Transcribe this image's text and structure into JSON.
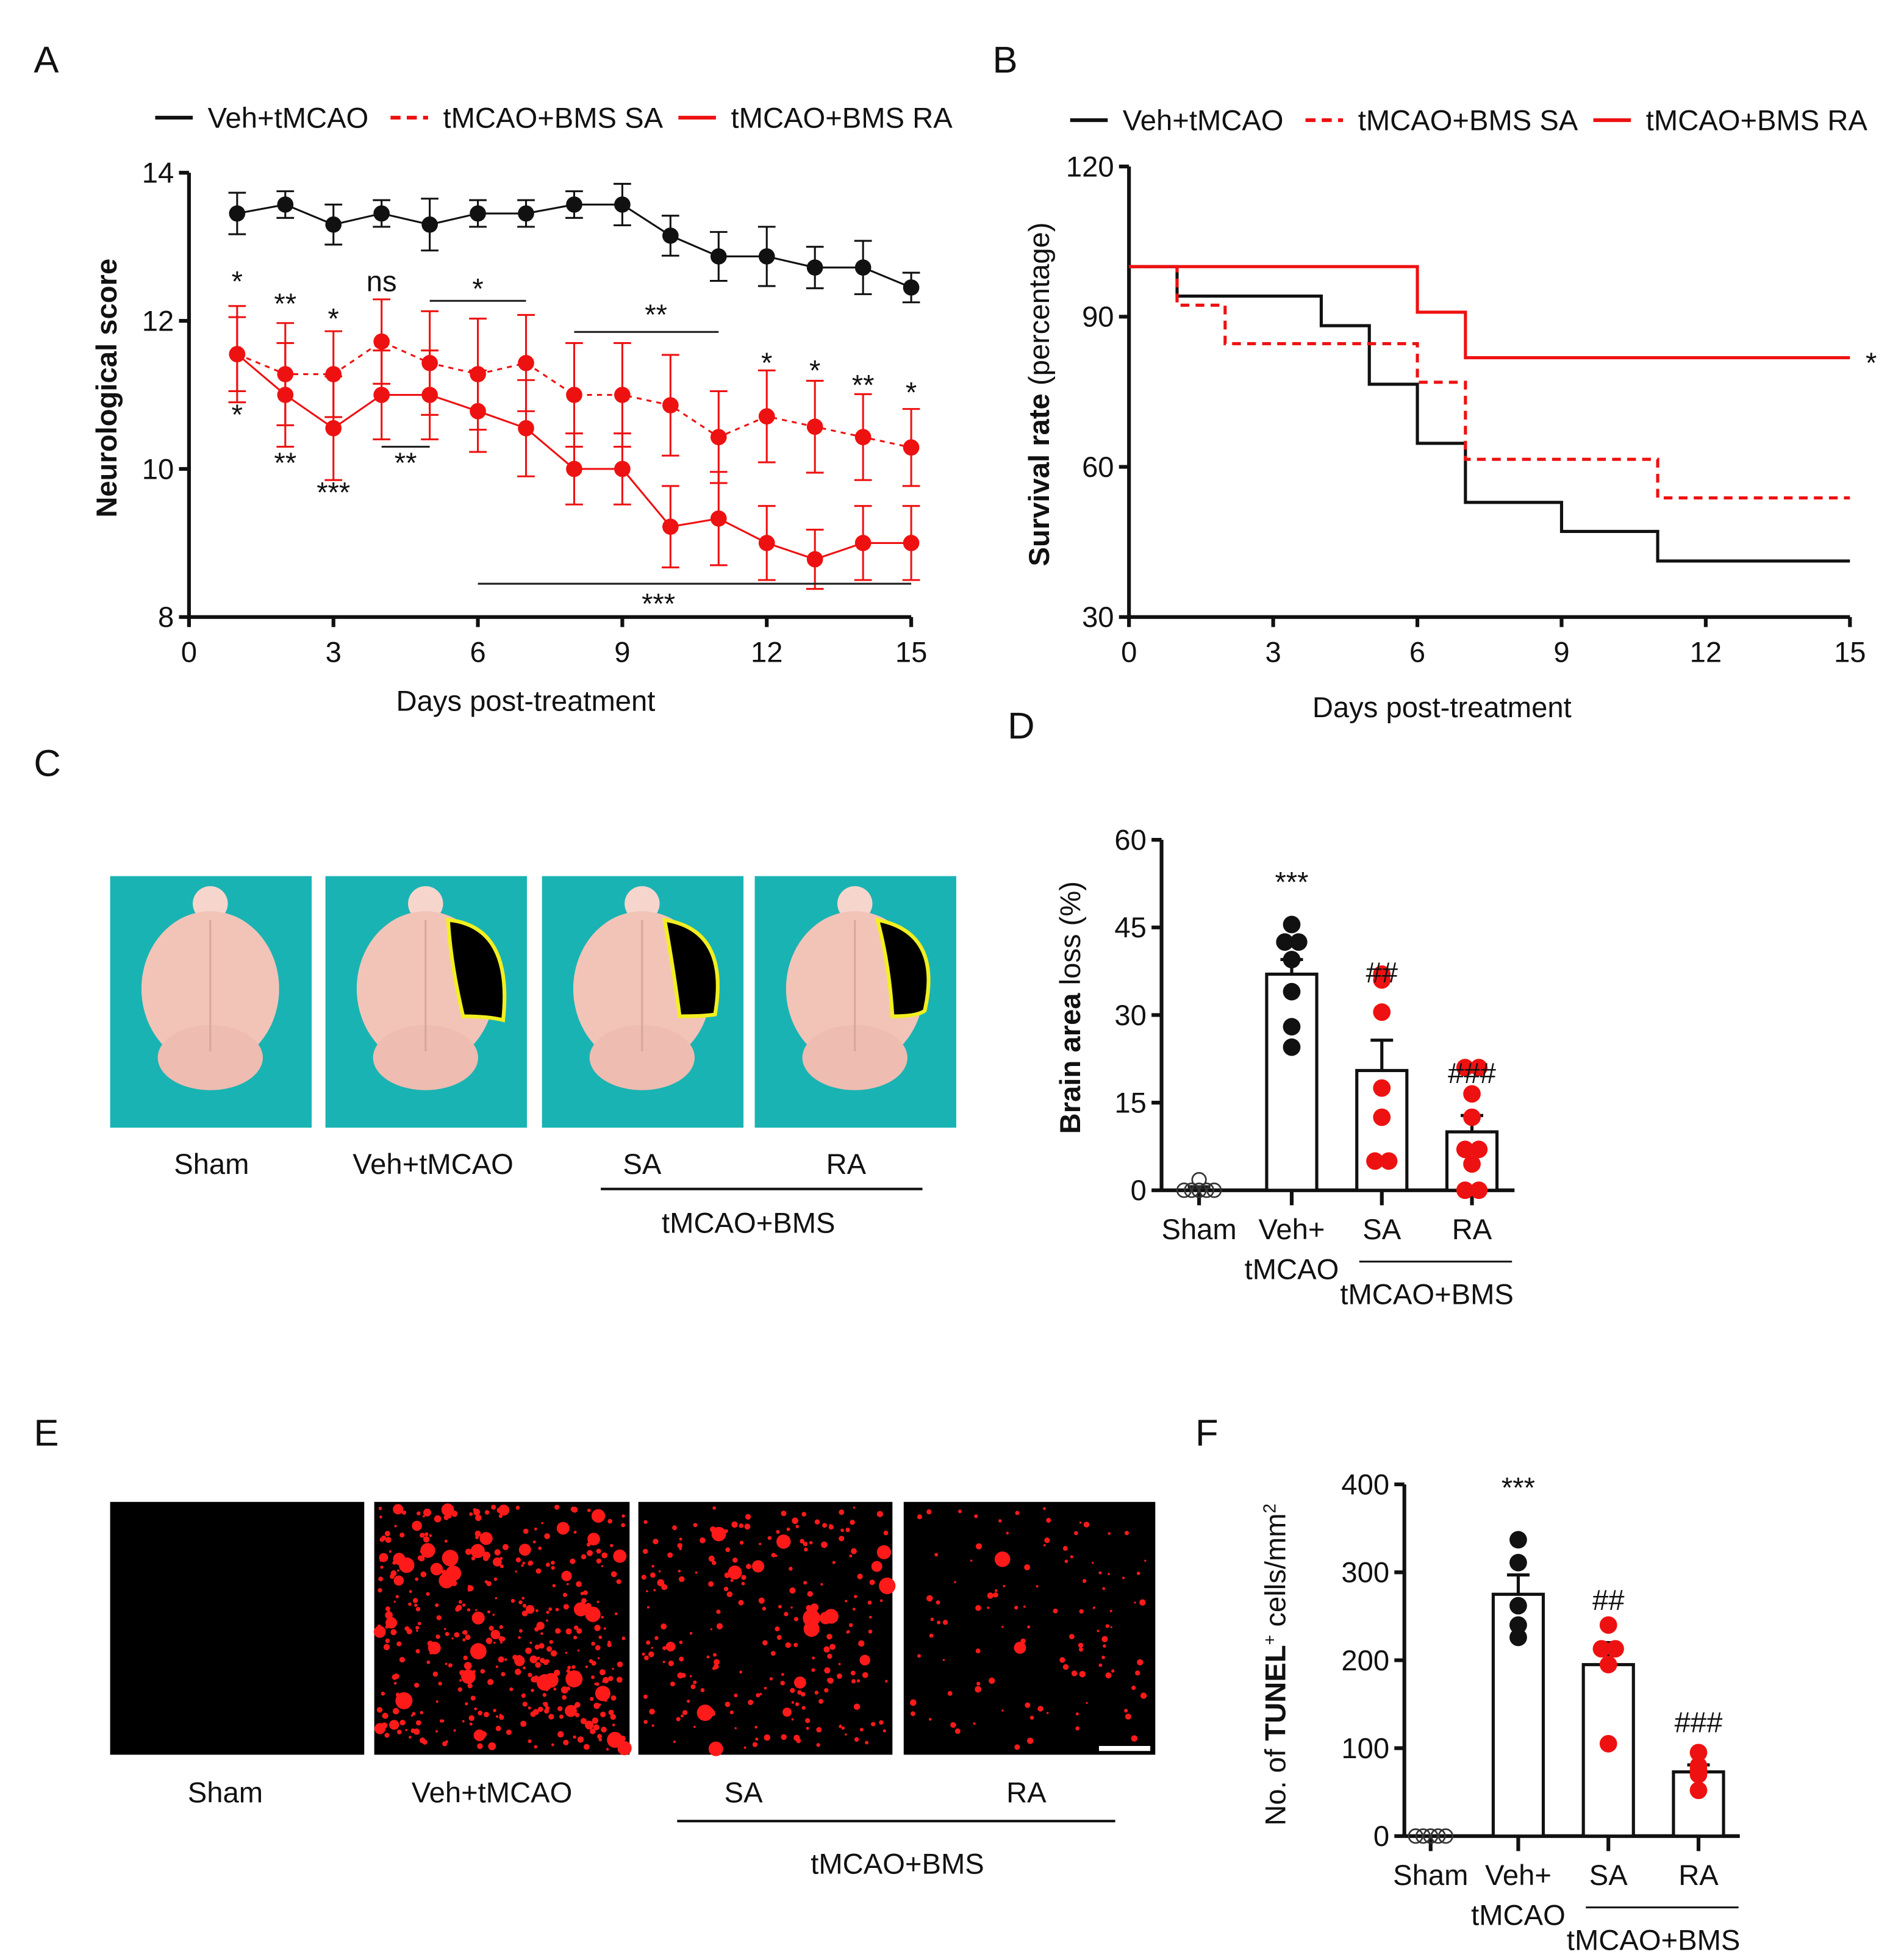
{
  "colors": {
    "black": "#111111",
    "red": "#ee1111",
    "teal": "#1ab3b3",
    "brain": "#f2c4b8"
  },
  "panels": {
    "A": "A",
    "B": "B",
    "C": "C",
    "D": "D",
    "E": "E",
    "F": "F"
  },
  "chart_data": [
    {
      "id": "A",
      "type": "line",
      "legend": [
        "Veh+tMCAO",
        "tMCAO+BMS SA",
        "tMCAO+BMS RA"
      ],
      "legend_placement": "top",
      "xlabel": "Days post-treatment",
      "ylabel_bold": "Neurological",
      "ylabel_rest": "score",
      "xlim": [
        0,
        15
      ],
      "ylim": [
        8,
        14
      ],
      "xticks": [
        0,
        3,
        6,
        9,
        12,
        15
      ],
      "yticks": [
        8,
        10,
        12,
        14
      ],
      "x": [
        1,
        2,
        3,
        4,
        5,
        6,
        7,
        8,
        9,
        10,
        11,
        12,
        13,
        14,
        15
      ],
      "series": [
        {
          "name": "Veh+tMCAO",
          "style": "solid",
          "color": "#111111",
          "values": [
            13.45,
            13.57,
            13.3,
            13.45,
            13.3,
            13.45,
            13.45,
            13.57,
            13.57,
            13.15,
            12.87,
            12.87,
            12.72,
            12.72,
            12.45
          ],
          "err": [
            0.28,
            0.18,
            0.27,
            0.18,
            0.35,
            0.18,
            0.18,
            0.18,
            0.28,
            0.27,
            0.33,
            0.4,
            0.28,
            0.36,
            0.2
          ]
        },
        {
          "name": "tMCAO+BMS SA",
          "style": "dashed",
          "color": "#ee1111",
          "values": [
            11.55,
            11.28,
            11.28,
            11.72,
            11.43,
            11.28,
            11.43,
            11.0,
            11.0,
            10.86,
            10.43,
            10.71,
            10.57,
            10.43,
            10.29
          ],
          "err": [
            0.65,
            0.69,
            0.58,
            0.57,
            0.7,
            0.75,
            0.65,
            0.7,
            0.7,
            0.68,
            0.62,
            0.62,
            0.62,
            0.58,
            0.52
          ]
        },
        {
          "name": "tMCAO+BMS RA",
          "style": "solid",
          "color": "#ee1111",
          "values": [
            11.55,
            11.0,
            10.55,
            11.0,
            11.0,
            10.78,
            10.55,
            10.0,
            10.0,
            9.22,
            9.33,
            9.0,
            8.78,
            9.0,
            9.0
          ],
          "err": [
            0.5,
            0.7,
            0.7,
            0.6,
            0.6,
            0.55,
            0.65,
            0.48,
            0.48,
            0.55,
            0.63,
            0.5,
            0.4,
            0.5,
            0.5
          ]
        }
      ],
      "annotations": [
        {
          "text": "*",
          "x": 1,
          "y": 12.4
        },
        {
          "text": "**",
          "x": 2,
          "y": 12.1
        },
        {
          "text": "*",
          "x": 3,
          "y": 11.9
        },
        {
          "text": "ns",
          "x": 4,
          "y": 12.4
        },
        {
          "text": "*",
          "x": 6,
          "y": 12.3
        },
        {
          "text": "**",
          "x": 9.7,
          "y": 11.95
        },
        {
          "text": "*",
          "x": 12,
          "y": 11.3
        },
        {
          "text": "*",
          "x": 13,
          "y": 11.2
        },
        {
          "text": "**",
          "x": 14,
          "y": 11.0
        },
        {
          "text": "*",
          "x": 15,
          "y": 10.9
        },
        {
          "text": "*",
          "x": 1,
          "y": 10.6
        },
        {
          "text": "**",
          "x": 2,
          "y": 9.95
        },
        {
          "text": "***",
          "x": 3,
          "y": 9.55
        },
        {
          "text": "**",
          "x": 4.5,
          "y": 9.95
        },
        {
          "text": "***",
          "x": 9.75,
          "y": 8.05
        }
      ],
      "brackets": [
        {
          "x1": 5,
          "x2": 7,
          "y": 12.27
        },
        {
          "x1": 8,
          "x2": 11,
          "y": 11.85
        },
        {
          "x1": 4,
          "x2": 5,
          "y": 10.3
        },
        {
          "x1": 6,
          "x2": 15,
          "y": 8.45
        }
      ]
    },
    {
      "id": "B",
      "type": "line",
      "legend": [
        "Veh+tMCAO",
        "tMCAO+BMS SA",
        "tMCAO+BMS RA"
      ],
      "legend_placement": "top",
      "xlabel": "Days post-treatment",
      "ylabel_bold": "Survival rate",
      "ylabel_rest": "(percentage)",
      "xlim": [
        0,
        15
      ],
      "ylim": [
        30,
        120
      ],
      "xticks": [
        0,
        3,
        6,
        9,
        12,
        15
      ],
      "yticks": [
        30,
        60,
        90,
        120
      ],
      "series": [
        {
          "name": "Veh+tMCAO",
          "style": "solid",
          "color": "#111111",
          "steps": [
            [
              0,
              100
            ],
            [
              1,
              94.1
            ],
            [
              4,
              88.2
            ],
            [
              5,
              76.5
            ],
            [
              6,
              64.7
            ],
            [
              7,
              52.9
            ],
            [
              9,
              47.1
            ],
            [
              11,
              41.2
            ],
            [
              15,
              41.2
            ]
          ]
        },
        {
          "name": "tMCAO+BMS SA",
          "style": "dashed",
          "color": "#ee1111",
          "steps": [
            [
              0,
              100
            ],
            [
              1,
              92.3
            ],
            [
              2,
              84.6
            ],
            [
              6,
              76.9
            ],
            [
              7,
              61.5
            ],
            [
              11,
              53.8
            ],
            [
              15,
              53.8
            ]
          ]
        },
        {
          "name": "tMCAO+BMS RA",
          "style": "solid",
          "color": "#ee1111",
          "steps": [
            [
              0,
              100
            ],
            [
              6,
              90.9
            ],
            [
              7,
              81.8
            ],
            [
              15,
              81.8
            ]
          ]
        }
      ],
      "annotation": "*"
    },
    {
      "id": "D",
      "type": "bar",
      "categories": [
        "Sham",
        "Veh+\ntMCAO",
        "SA",
        "RA"
      ],
      "cat_line1": [
        "Sham",
        "Veh+",
        "SA",
        "RA"
      ],
      "cat_line2": [
        "",
        "tMCAO",
        "",
        ""
      ],
      "group_label": "tMCAO+BMS",
      "ylabel_bold": "Brain area",
      "ylabel_rest": "loss (%)",
      "ylim": [
        0,
        60
      ],
      "yticks": [
        0,
        15,
        30,
        45,
        60
      ],
      "values": [
        0.3,
        37,
        20.5,
        10
      ],
      "sem": [
        0.3,
        2.5,
        5.2,
        2.8
      ],
      "points": [
        [
          1.8,
          0,
          0,
          0,
          0,
          0
        ],
        [
          45.5,
          42.5,
          42.5,
          39.5,
          34,
          28,
          24.5
        ],
        [
          37,
          36,
          30.5,
          17.5,
          12.5,
          5,
          5
        ],
        [
          21,
          21,
          16.5,
          12.5,
          7,
          7,
          4.5,
          0,
          0
        ]
      ],
      "point_style": [
        "open",
        "black",
        "red",
        "red"
      ],
      "annotations": [
        "",
        "***",
        "##",
        "###"
      ]
    },
    {
      "id": "F",
      "type": "bar",
      "categories": [
        "Sham",
        "Veh+\ntMCAO",
        "SA",
        "RA"
      ],
      "cat_line1": [
        "Sham",
        "Veh+",
        "SA",
        "RA"
      ],
      "cat_line2": [
        "",
        "tMCAO",
        "",
        ""
      ],
      "group_label": "tMCAO+BMS",
      "ylabel_pre": "No. of",
      "ylabel_bold": "TUNEL",
      "ylabel_sup": "+",
      "ylabel_rest": "cells/mm",
      "ylabel_sup2": "2",
      "ylim": [
        0,
        400
      ],
      "yticks": [
        0,
        100,
        200,
        300,
        400
      ],
      "values": [
        0,
        275,
        195,
        73
      ],
      "sem": [
        0,
        22,
        25,
        8
      ],
      "points": [
        [
          0,
          0,
          0,
          0,
          0
        ],
        [
          337,
          311,
          262,
          240,
          226
        ],
        [
          240,
          213,
          213,
          195,
          105
        ],
        [
          95,
          80,
          75,
          70,
          52
        ]
      ],
      "point_style": [
        "open",
        "black",
        "red",
        "red"
      ],
      "annotations": [
        "",
        "***",
        "##",
        "###"
      ]
    }
  ],
  "panel_C": {
    "labels": [
      "Sham",
      "Veh+tMCAO",
      "SA",
      "RA"
    ],
    "group_label": "tMCAO+BMS"
  },
  "panel_E": {
    "labels": [
      "Sham",
      "Veh+tMCAO",
      "SA",
      "RA"
    ],
    "group_label": "tMCAO+BMS",
    "spot_density": [
      0,
      1,
      0.55,
      0.25
    ]
  }
}
